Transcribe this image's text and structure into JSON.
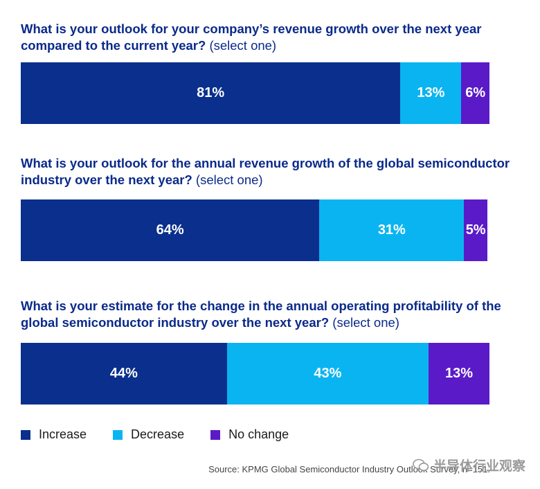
{
  "colors": {
    "increase": "#0a2f8c",
    "decrease": "#0ab4f0",
    "no_change": "#5a1ac8"
  },
  "chart_data": [
    {
      "type": "bar",
      "orientation": "horizontal-stacked",
      "title": "What is your outlook for your company’s revenue growth over the next year compared to the current year?",
      "title_note": "(select one)",
      "series": [
        {
          "name": "Increase",
          "value": 81,
          "label": "81%"
        },
        {
          "name": "Decrease",
          "value": 13,
          "label": "13%"
        },
        {
          "name": "No change",
          "value": 6,
          "label": "6%"
        }
      ]
    },
    {
      "type": "bar",
      "orientation": "horizontal-stacked",
      "title": "What is your outlook for the annual revenue growth of the global semiconductor industry over the next year?",
      "title_note": "(select one)",
      "series": [
        {
          "name": "Increase",
          "value": 64,
          "label": "64%"
        },
        {
          "name": "Decrease",
          "value": 31,
          "label": "31%"
        },
        {
          "name": "No change",
          "value": 5,
          "label": "5%"
        }
      ]
    },
    {
      "type": "bar",
      "orientation": "horizontal-stacked",
      "title": "What is your estimate for the change in the annual operating profitability of the global semiconductor industry over the next year?",
      "title_note": "(select one)",
      "series": [
        {
          "name": "Increase",
          "value": 44,
          "label": "44%"
        },
        {
          "name": "Decrease",
          "value": 43,
          "label": "43%"
        },
        {
          "name": "No change",
          "value": 13,
          "label": "13%"
        }
      ]
    }
  ],
  "legend": [
    {
      "label": "Increase",
      "color": "#0a2f8c"
    },
    {
      "label": "Decrease",
      "color": "#0ab4f0"
    },
    {
      "label": "No change",
      "color": "#5a1ac8"
    }
  ],
  "source": "Source: KPMG Global Semiconductor Industry Outlook Survey, n=151.",
  "watermark": "半导体行业观察"
}
